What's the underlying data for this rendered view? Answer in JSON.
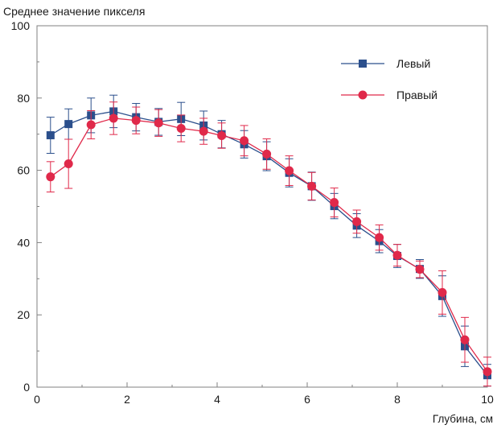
{
  "chart_data": {
    "type": "line",
    "title": "",
    "ylabel": "Среднее значение пикселя",
    "xlabel": "Глубина, см",
    "xlim": [
      0,
      10
    ],
    "ylim": [
      0,
      100
    ],
    "x_ticks": [
      0,
      2,
      4,
      6,
      8,
      10
    ],
    "y_ticks": [
      0,
      20,
      40,
      60,
      80,
      100
    ],
    "x_tick_labels": [
      "0",
      "2",
      "4",
      "6",
      "8",
      "10"
    ],
    "y_tick_labels": [
      "0",
      "20",
      "40",
      "60",
      "80",
      "100"
    ],
    "grid": false,
    "legend_position": "top-right",
    "series": [
      {
        "name": "Левый",
        "color": "#2b4f8c",
        "marker": "square",
        "x": [
          0.3,
          0.7,
          1.2,
          1.7,
          2.2,
          2.7,
          3.2,
          3.7,
          4.1,
          4.6,
          5.1,
          5.6,
          6.1,
          6.6,
          7.1,
          7.6,
          8.0,
          8.5,
          9.0,
          9.5,
          10.0
        ],
        "y": [
          69.7,
          72.8,
          75.2,
          76.3,
          74.7,
          73.4,
          74.2,
          72.4,
          70.0,
          67.2,
          63.9,
          59.3,
          55.6,
          50.1,
          44.7,
          40.4,
          36.3,
          32.7,
          25.2,
          11.3,
          3.3
        ],
        "err": [
          5.0,
          4.2,
          4.8,
          4.5,
          3.8,
          3.7,
          4.6,
          4.0,
          3.8,
          3.8,
          4.0,
          3.9,
          3.9,
          3.5,
          3.3,
          3.2,
          3.2,
          2.6,
          5.6,
          5.6,
          3.0
        ]
      },
      {
        "name": "Правый",
        "color": "#e0294a",
        "marker": "circle",
        "x": [
          0.3,
          0.7,
          1.2,
          1.7,
          2.2,
          2.7,
          3.2,
          3.7,
          4.1,
          4.6,
          5.1,
          5.6,
          6.1,
          6.6,
          7.1,
          7.6,
          8.0,
          8.5,
          9.0,
          9.5,
          10.0
        ],
        "y": [
          58.2,
          61.8,
          72.6,
          74.4,
          73.8,
          73.1,
          71.6,
          70.8,
          69.6,
          68.2,
          64.5,
          59.9,
          55.6,
          51.1,
          45.8,
          41.4,
          36.5,
          32.6,
          26.2,
          13.1,
          4.3
        ],
        "err": [
          4.2,
          6.8,
          3.9,
          4.5,
          3.7,
          3.7,
          3.7,
          3.6,
          3.5,
          4.2,
          4.2,
          4.1,
          3.8,
          4.0,
          3.2,
          3.5,
          3.0,
          2.3,
          6.0,
          6.2,
          4.0
        ]
      }
    ]
  }
}
